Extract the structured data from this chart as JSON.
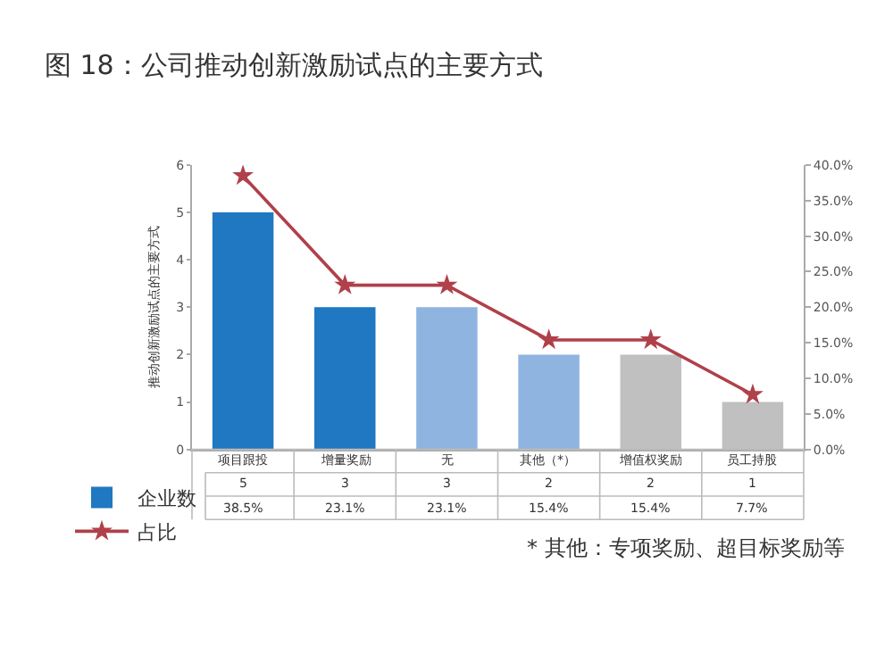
{
  "chart_data": {
    "type": "bar",
    "title": "图 18：公司推动创新激励试点的主要方式",
    "ylabel": "推动创新激励试点的主要方式",
    "categories": [
      "项目跟投",
      "增量奖励",
      "无",
      "其他（*）",
      "增值权奖励",
      "员工持股"
    ],
    "series": [
      {
        "name": "企业数",
        "color": "#1f78c1",
        "colors": [
          "#1f78c1",
          "#1f78c1",
          "#8fb4e0",
          "#8fb4e0",
          "#c0c0c0",
          "#c0c0c0"
        ],
        "values": [
          5,
          3,
          3,
          2,
          2,
          1
        ],
        "value_labels": [
          "5",
          "3",
          "3",
          "2",
          "2",
          "1"
        ]
      },
      {
        "name": "占比",
        "type": "line",
        "axis": "y2",
        "color": "#b0404a",
        "marker": "star",
        "values": [
          38.5,
          23.1,
          23.1,
          15.4,
          15.4,
          7.7
        ],
        "value_labels": [
          "38.5%",
          "23.1%",
          "23.1%",
          "15.4%",
          "15.4%",
          "7.7%"
        ]
      }
    ],
    "ylim": [
      0,
      6
    ],
    "yticks": [
      0,
      1,
      2,
      3,
      4,
      5,
      6
    ],
    "y2lim": [
      0,
      40
    ],
    "y2ticks": [
      {
        "value": 0,
        "label": "0.0%"
      },
      {
        "value": 5,
        "label": "5.0%"
      },
      {
        "value": 10,
        "label": "10.0%"
      },
      {
        "value": 15,
        "label": "15.0%"
      },
      {
        "value": 20,
        "label": "20.0%"
      },
      {
        "value": 25,
        "label": "25.0%"
      },
      {
        "value": 30,
        "label": "30.0%"
      },
      {
        "value": 35,
        "label": "35.0%"
      },
      {
        "value": 40,
        "label": "40.0%"
      }
    ],
    "legend": "bottom left",
    "annotations": [
      "* 其他：专项奖励、超目标奖励等"
    ]
  }
}
